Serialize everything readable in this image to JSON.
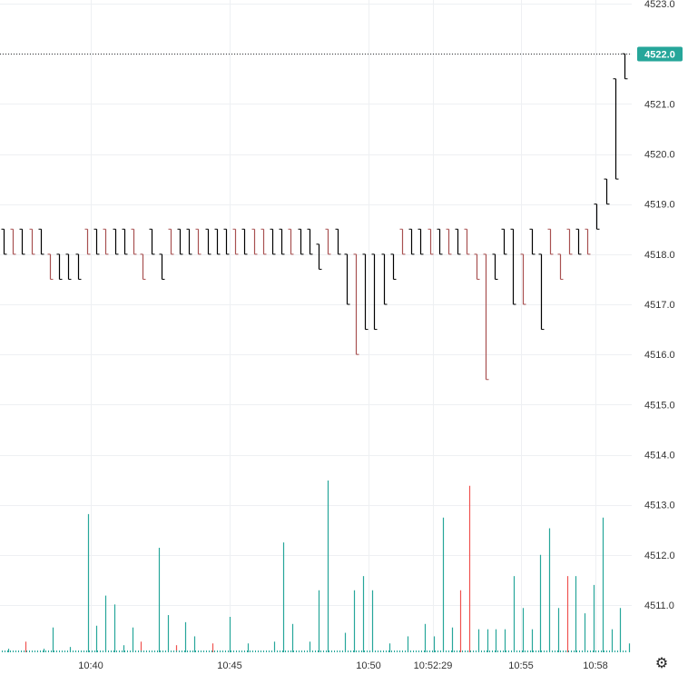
{
  "chart_data": {
    "type": "line",
    "style": "tick-bars-with-volume",
    "price_axis": {
      "ylim": [
        4510.35,
        4523.0
      ],
      "ticks": [
        4511.0,
        4512.0,
        4513.0,
        4514.0,
        4515.0,
        4516.0,
        4517.0,
        4518.0,
        4519.0,
        4520.0,
        4521.0,
        4522.0,
        4523.0
      ],
      "tick_labels": [
        "4511.0",
        "4512.0",
        "4513.0",
        "4514.0",
        "4515.0",
        "4516.0",
        "4517.0",
        "4518.0",
        "4519.0",
        "4520.0",
        "4521.0",
        "4522.0",
        "4523.0"
      ]
    },
    "time_axis": {
      "tick_labels": [
        "10:40",
        "10:45",
        "10:50",
        "10:52:29",
        "10:55",
        "10:58"
      ]
    },
    "last_price": "4522.0",
    "last_price_value": 4522.0,
    "grid": true,
    "colors": {
      "up_bar": "#000000",
      "down_bar": "#a85050",
      "volume_up": "#26a69a",
      "volume_down": "#ef5350",
      "price_tag": "#26a69a",
      "grid": "#eef0f3"
    },
    "price_bars": [
      {
        "x": 1,
        "low": 4518.0,
        "high": 4518.5,
        "dir": "up"
      },
      {
        "x": 2,
        "low": 4518.0,
        "high": 4518.5,
        "dir": "down"
      },
      {
        "x": 3,
        "low": 4518.0,
        "high": 4518.5,
        "dir": "up"
      },
      {
        "x": 4,
        "low": 4518.0,
        "high": 4518.5,
        "dir": "down"
      },
      {
        "x": 5,
        "low": 4518.0,
        "high": 4518.5,
        "dir": "up"
      },
      {
        "x": 6,
        "low": 4517.5,
        "high": 4518.0,
        "dir": "down"
      },
      {
        "x": 7,
        "low": 4517.5,
        "high": 4518.0,
        "dir": "up"
      },
      {
        "x": 8,
        "low": 4517.5,
        "high": 4518.0,
        "dir": "up"
      },
      {
        "x": 9,
        "low": 4517.5,
        "high": 4518.0,
        "dir": "up"
      },
      {
        "x": 10,
        "low": 4518.0,
        "high": 4518.5,
        "dir": "down"
      },
      {
        "x": 11,
        "low": 4518.0,
        "high": 4518.5,
        "dir": "up"
      },
      {
        "x": 12,
        "low": 4518.0,
        "high": 4518.5,
        "dir": "down"
      },
      {
        "x": 13,
        "low": 4518.0,
        "high": 4518.5,
        "dir": "up"
      },
      {
        "x": 14,
        "low": 4518.0,
        "high": 4518.5,
        "dir": "up"
      },
      {
        "x": 15,
        "low": 4518.0,
        "high": 4518.5,
        "dir": "down"
      },
      {
        "x": 16,
        "low": 4517.5,
        "high": 4518.0,
        "dir": "down"
      },
      {
        "x": 17,
        "low": 4518.0,
        "high": 4518.5,
        "dir": "up"
      },
      {
        "x": 18,
        "low": 4517.5,
        "high": 4518.0,
        "dir": "up"
      },
      {
        "x": 19,
        "low": 4518.0,
        "high": 4518.5,
        "dir": "down"
      },
      {
        "x": 20,
        "low": 4518.0,
        "high": 4518.5,
        "dir": "up"
      },
      {
        "x": 21,
        "low": 4518.0,
        "high": 4518.5,
        "dir": "up"
      },
      {
        "x": 22,
        "low": 4518.0,
        "high": 4518.5,
        "dir": "down"
      },
      {
        "x": 23,
        "low": 4518.0,
        "high": 4518.5,
        "dir": "up"
      },
      {
        "x": 24,
        "low": 4518.0,
        "high": 4518.5,
        "dir": "up"
      },
      {
        "x": 25,
        "low": 4518.0,
        "high": 4518.5,
        "dir": "up"
      },
      {
        "x": 26,
        "low": 4518.0,
        "high": 4518.5,
        "dir": "down"
      },
      {
        "x": 27,
        "low": 4518.0,
        "high": 4518.5,
        "dir": "up"
      },
      {
        "x": 28,
        "low": 4518.0,
        "high": 4518.5,
        "dir": "down"
      },
      {
        "x": 29,
        "low": 4518.0,
        "high": 4518.5,
        "dir": "down"
      },
      {
        "x": 30,
        "low": 4518.0,
        "high": 4518.5,
        "dir": "up"
      },
      {
        "x": 31,
        "low": 4518.0,
        "high": 4518.5,
        "dir": "up"
      },
      {
        "x": 32,
        "low": 4518.0,
        "high": 4518.5,
        "dir": "down"
      },
      {
        "x": 33,
        "low": 4518.0,
        "high": 4518.5,
        "dir": "up"
      },
      {
        "x": 34,
        "low": 4518.0,
        "high": 4518.5,
        "dir": "up"
      },
      {
        "x": 35,
        "low": 4517.7,
        "high": 4518.2,
        "dir": "up"
      },
      {
        "x": 36,
        "low": 4518.0,
        "high": 4518.5,
        "dir": "down"
      },
      {
        "x": 37,
        "low": 4518.0,
        "high": 4518.5,
        "dir": "up"
      },
      {
        "x": 38,
        "low": 4517.0,
        "high": 4518.0,
        "dir": "up"
      },
      {
        "x": 39,
        "low": 4516.0,
        "high": 4518.0,
        "dir": "down"
      },
      {
        "x": 40,
        "low": 4516.5,
        "high": 4518.0,
        "dir": "up"
      },
      {
        "x": 41,
        "low": 4516.5,
        "high": 4518.0,
        "dir": "up"
      },
      {
        "x": 42,
        "low": 4517.0,
        "high": 4518.0,
        "dir": "up"
      },
      {
        "x": 43,
        "low": 4517.5,
        "high": 4518.0,
        "dir": "up"
      },
      {
        "x": 44,
        "low": 4518.0,
        "high": 4518.5,
        "dir": "down"
      },
      {
        "x": 45,
        "low": 4518.0,
        "high": 4518.5,
        "dir": "up"
      },
      {
        "x": 46,
        "low": 4518.0,
        "high": 4518.5,
        "dir": "up"
      },
      {
        "x": 47,
        "low": 4518.0,
        "high": 4518.5,
        "dir": "down"
      },
      {
        "x": 48,
        "low": 4518.0,
        "high": 4518.5,
        "dir": "up"
      },
      {
        "x": 49,
        "low": 4518.0,
        "high": 4518.5,
        "dir": "down"
      },
      {
        "x": 50,
        "low": 4518.0,
        "high": 4518.5,
        "dir": "up"
      },
      {
        "x": 51,
        "low": 4518.0,
        "high": 4518.5,
        "dir": "down"
      },
      {
        "x": 52,
        "low": 4517.5,
        "high": 4518.0,
        "dir": "down"
      },
      {
        "x": 53,
        "low": 4515.5,
        "high": 4518.0,
        "dir": "down"
      },
      {
        "x": 54,
        "low": 4517.5,
        "high": 4518.0,
        "dir": "up"
      },
      {
        "x": 55,
        "low": 4518.0,
        "high": 4518.5,
        "dir": "up"
      },
      {
        "x": 56,
        "low": 4517.0,
        "high": 4518.5,
        "dir": "up"
      },
      {
        "x": 57,
        "low": 4517.0,
        "high": 4518.0,
        "dir": "down"
      },
      {
        "x": 58,
        "low": 4518.0,
        "high": 4518.5,
        "dir": "up"
      },
      {
        "x": 59,
        "low": 4516.5,
        "high": 4518.0,
        "dir": "up"
      },
      {
        "x": 60,
        "low": 4518.0,
        "high": 4518.5,
        "dir": "down"
      },
      {
        "x": 61,
        "low": 4517.5,
        "high": 4518.0,
        "dir": "down"
      },
      {
        "x": 62,
        "low": 4518.0,
        "high": 4518.5,
        "dir": "down"
      },
      {
        "x": 63,
        "low": 4518.0,
        "high": 4518.5,
        "dir": "up"
      },
      {
        "x": 64,
        "low": 4518.0,
        "high": 4518.5,
        "dir": "down"
      },
      {
        "x": 65,
        "low": 4518.5,
        "high": 4519.0,
        "dir": "up"
      },
      {
        "x": 66,
        "low": 4519.0,
        "high": 4519.5,
        "dir": "up"
      },
      {
        "x": 67,
        "low": 4519.5,
        "high": 4521.5,
        "dir": "up"
      },
      {
        "x": 68,
        "low": 4521.5,
        "high": 4522.0,
        "dir": "up"
      }
    ],
    "volume": [
      {
        "x": 1,
        "v": 2,
        "dir": "up"
      },
      {
        "x": 3,
        "v": 6,
        "dir": "down"
      },
      {
        "x": 5,
        "v": 2,
        "dir": "up"
      },
      {
        "x": 6,
        "v": 14,
        "dir": "up"
      },
      {
        "x": 8,
        "v": 3,
        "dir": "up"
      },
      {
        "x": 10,
        "v": 78,
        "dir": "up"
      },
      {
        "x": 11,
        "v": 15,
        "dir": "up"
      },
      {
        "x": 12,
        "v": 32,
        "dir": "up"
      },
      {
        "x": 13,
        "v": 27,
        "dir": "up"
      },
      {
        "x": 14,
        "v": 4,
        "dir": "up"
      },
      {
        "x": 15,
        "v": 14,
        "dir": "up"
      },
      {
        "x": 16,
        "v": 6,
        "dir": "down"
      },
      {
        "x": 18,
        "v": 59,
        "dir": "up"
      },
      {
        "x": 19,
        "v": 21,
        "dir": "up"
      },
      {
        "x": 20,
        "v": 4,
        "dir": "down"
      },
      {
        "x": 21,
        "v": 17,
        "dir": "up"
      },
      {
        "x": 22,
        "v": 9,
        "dir": "up"
      },
      {
        "x": 24,
        "v": 5,
        "dir": "down"
      },
      {
        "x": 26,
        "v": 20,
        "dir": "up"
      },
      {
        "x": 28,
        "v": 5,
        "dir": "up"
      },
      {
        "x": 31,
        "v": 6,
        "dir": "up"
      },
      {
        "x": 32,
        "v": 62,
        "dir": "up"
      },
      {
        "x": 33,
        "v": 16,
        "dir": "up"
      },
      {
        "x": 35,
        "v": 6,
        "dir": "up"
      },
      {
        "x": 36,
        "v": 35,
        "dir": "up"
      },
      {
        "x": 37,
        "v": 97,
        "dir": "up"
      },
      {
        "x": 39,
        "v": 11,
        "dir": "up"
      },
      {
        "x": 40,
        "v": 35,
        "dir": "up"
      },
      {
        "x": 41,
        "v": 43,
        "dir": "up"
      },
      {
        "x": 42,
        "v": 35,
        "dir": "up"
      },
      {
        "x": 44,
        "v": 5,
        "dir": "up"
      },
      {
        "x": 46,
        "v": 9,
        "dir": "up"
      },
      {
        "x": 48,
        "v": 16,
        "dir": "up"
      },
      {
        "x": 49,
        "v": 9,
        "dir": "up"
      },
      {
        "x": 50,
        "v": 76,
        "dir": "up"
      },
      {
        "x": 51,
        "v": 14,
        "dir": "up"
      },
      {
        "x": 52,
        "v": 35,
        "dir": "down"
      },
      {
        "x": 53,
        "v": 94,
        "dir": "down"
      },
      {
        "x": 54,
        "v": 13,
        "dir": "up"
      },
      {
        "x": 55,
        "v": 13,
        "dir": "up"
      },
      {
        "x": 56,
        "v": 13,
        "dir": "up"
      },
      {
        "x": 57,
        "v": 13,
        "dir": "up"
      },
      {
        "x": 58,
        "v": 43,
        "dir": "up"
      },
      {
        "x": 59,
        "v": 25,
        "dir": "up"
      },
      {
        "x": 60,
        "v": 13,
        "dir": "up"
      },
      {
        "x": 61,
        "v": 55,
        "dir": "up"
      },
      {
        "x": 62,
        "v": 70,
        "dir": "up"
      },
      {
        "x": 63,
        "v": 25,
        "dir": "up"
      },
      {
        "x": 64,
        "v": 43,
        "dir": "down"
      },
      {
        "x": 65,
        "v": 43,
        "dir": "up"
      },
      {
        "x": 66,
        "v": 22,
        "dir": "up"
      },
      {
        "x": 67,
        "v": 38,
        "dir": "up"
      },
      {
        "x": 68,
        "v": 76,
        "dir": "up"
      },
      {
        "x": 69,
        "v": 13,
        "dir": "up"
      },
      {
        "x": 70,
        "v": 25,
        "dir": "up"
      },
      {
        "x": 71,
        "v": 5,
        "dir": "up"
      }
    ]
  },
  "icons": {
    "settings": "gear-icon"
  }
}
